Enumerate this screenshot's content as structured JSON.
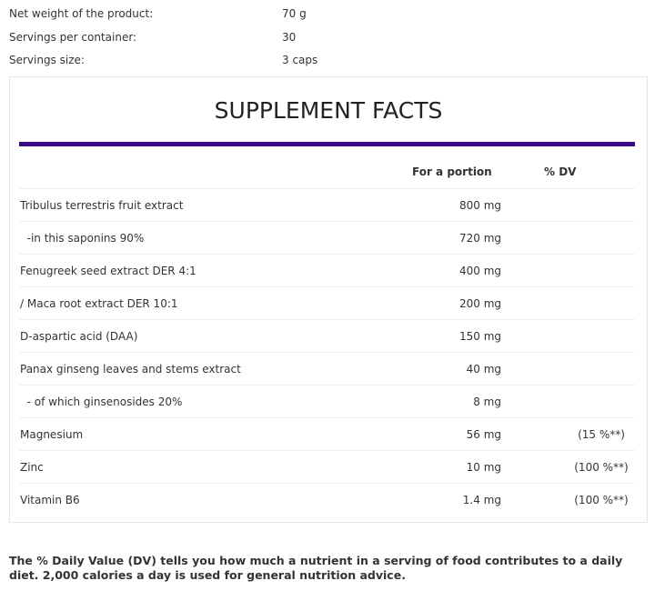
{
  "specs": [
    {
      "label": "Net weight of the product:",
      "value": "70 g"
    },
    {
      "label": "Servings per container:",
      "value": "30"
    },
    {
      "label": "Servings size:",
      "value": "3 caps"
    }
  ],
  "facts": {
    "title": "SUPPLEMENT FACTS",
    "accent_color": "#3b0a8c",
    "col_portion": "For a portion",
    "col_dv": "% DV",
    "rows": [
      {
        "name": "Tribulus terrestris fruit extract",
        "amount": "800 mg",
        "dv": ""
      },
      {
        "name": "  -in this saponins 90%",
        "amount": "720 mg",
        "dv": ""
      },
      {
        "name": "Fenugreek seed extract DER 4:1",
        "amount": "400 mg",
        "dv": ""
      },
      {
        "name": "/ Maca root extract DER 10:1",
        "amount": "200 mg",
        "dv": ""
      },
      {
        "name": "D-aspartic acid (DAA)",
        "amount": "150 mg",
        "dv": ""
      },
      {
        "name": "Panax ginseng leaves and stems extract",
        "amount": "40 mg",
        "dv": ""
      },
      {
        "name": "  - of which ginsenosides 20%",
        "amount": "8 mg",
        "dv": ""
      },
      {
        "name": "Magnesium",
        "amount": "56 mg",
        "dv": "(15 %**)"
      },
      {
        "name": "Zinc",
        "amount": "10 mg",
        "dv": "(100 %**)"
      },
      {
        "name": "Vitamin B6",
        "amount": "1.4 mg",
        "dv": "(100 %**)"
      }
    ]
  },
  "footer": "The % Daily Value (DV) tells you how much a nutrient in a serving of food contributes to a daily diet. 2,000 calories a day is used for general nutrition advice."
}
